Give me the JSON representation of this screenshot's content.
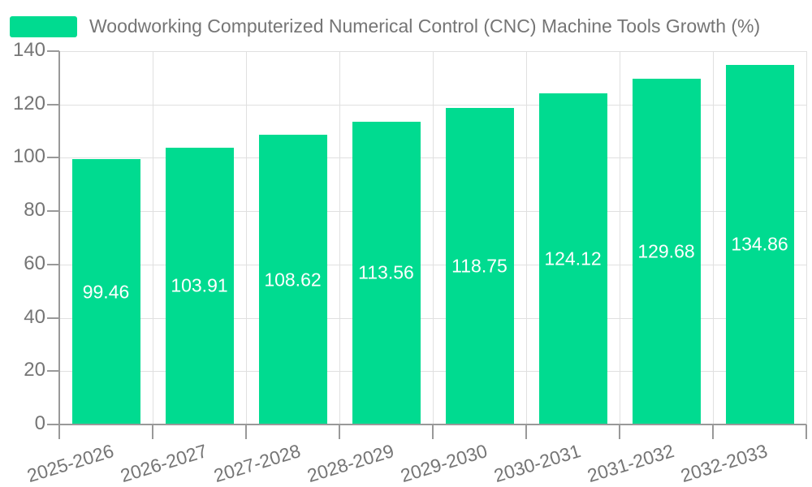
{
  "legend": {
    "label": "Woodworking Computerized Numerical Control (CNC) Machine Tools Growth (%)"
  },
  "chart_data": {
    "type": "bar",
    "title": "Woodworking Computerized Numerical Control (CNC) Machine Tools Growth (%)",
    "categories": [
      "2025-2026",
      "2026-2027",
      "2027-2028",
      "2028-2029",
      "2029-2030",
      "2030-2031",
      "2031-2032",
      "2032-2033"
    ],
    "series": [
      {
        "name": "Woodworking Computerized Numerical Control (CNC) Machine Tools Growth (%)",
        "values": [
          99.46,
          103.91,
          108.62,
          113.56,
          118.75,
          124.12,
          129.68,
          134.86
        ]
      }
    ],
    "value_labels": [
      "99.46",
      "103.91",
      "108.62",
      "113.56",
      "118.75",
      "124.12",
      "129.68",
      "134.86"
    ],
    "xlabel": "",
    "ylabel": "",
    "ylim": [
      0,
      140
    ],
    "yticks": [
      0,
      20,
      40,
      60,
      80,
      100,
      120,
      140
    ],
    "grid": true,
    "legend_position": "top-left",
    "x_label_rotation_deg": -17,
    "colors": {
      "bar": "#00DB90",
      "bar_label": "#FFFFFF",
      "axis_line": "#999999",
      "grid_line": "#E0E0E0",
      "text": "#757575",
      "background": "#FFFFFF"
    }
  }
}
